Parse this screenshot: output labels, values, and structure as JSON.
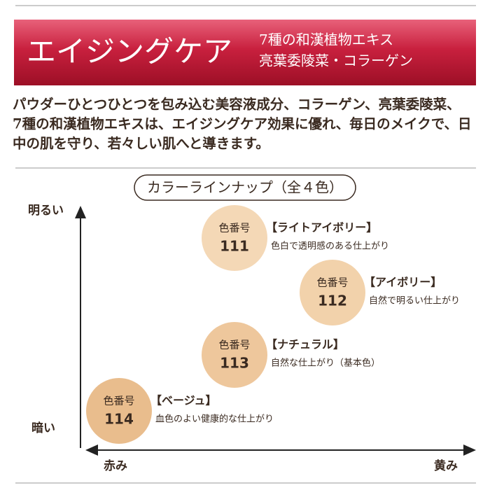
{
  "header": {
    "title": "エイジングケア",
    "subtitle_lines": [
      "7種の和漢植物エキス",
      "亮葉委陵菜・コラーゲン"
    ]
  },
  "body": {
    "lines": [
      "パウダーひとつひとつを包み込む美容液成分、コラーゲン、亮葉委陵菜、",
      "7種の和漢植物エキスは、エイジングケア効果に優れ、毎日のメイクで、日",
      "中の肌を守り、若々しい肌へと導きます。"
    ]
  },
  "lineup": {
    "heading": "カラーラインナップ（全４色）",
    "axes": {
      "top": "明るい",
      "bottom": "暗い",
      "left": "赤み",
      "right": "黄み"
    },
    "shades": [
      {
        "code_label": "色番号",
        "code": "111",
        "name": "【ライトアイボリー】",
        "description": "色白で透明感のある仕上がり"
      },
      {
        "code_label": "色番号",
        "code": "112",
        "name": "【アイボリー】",
        "description": "自然で明るい仕上がり"
      },
      {
        "code_label": "色番号",
        "code": "113",
        "name": "【ナチュラル】",
        "description": "自然な仕上がり（基本色）"
      },
      {
        "code_label": "色番号",
        "code": "114",
        "name": "【ベージュ】",
        "description": "血色のよい健康的な仕上がり"
      }
    ]
  }
}
